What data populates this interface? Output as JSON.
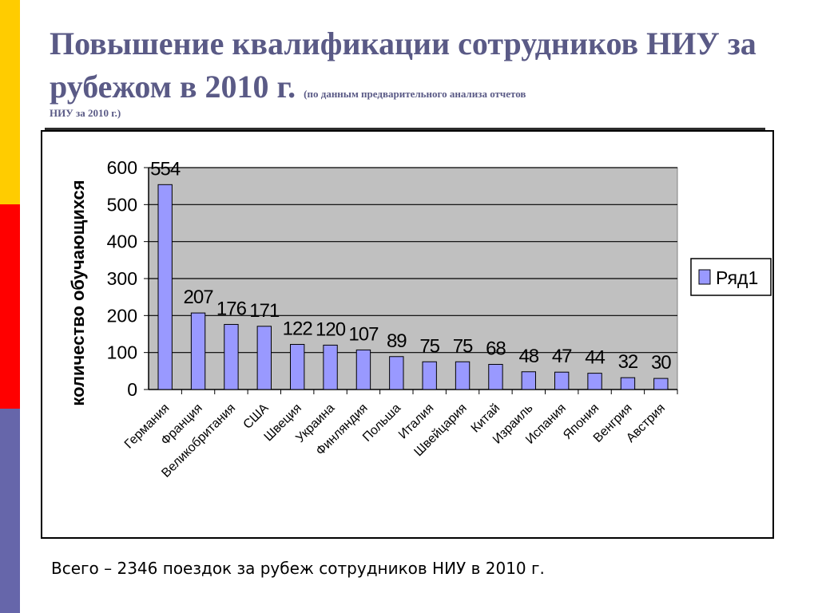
{
  "slide": {
    "title": "Повышение квалификации сотрудников НИУ за рубежом в 2010 г.",
    "subtitle_part1": "(по данным предварительного анализа отчетов",
    "subtitle_part2": "НИУ за 2010 г.)",
    "footer": "Всего – 2346 поездок за рубеж сотрудников НИУ в 2010 г.",
    "side_colors": [
      "#ffcc00",
      "#ff0000",
      "#6666aa"
    ]
  },
  "chart_data": {
    "type": "bar",
    "categories": [
      "Германия",
      "Франция",
      "Великобритания",
      "США",
      "Швеция",
      "Украина",
      "Финляндия",
      "Польша",
      "Италия",
      "Швейцария",
      "Китай",
      "Израиль",
      "Испания",
      "Япония",
      "Венгрия",
      "Австрия"
    ],
    "series": [
      {
        "name": "Ряд1",
        "values": [
          554,
          207,
          176,
          171,
          122,
          120,
          107,
          89,
          75,
          75,
          68,
          48,
          47,
          44,
          32,
          30
        ],
        "color": "#9999ff"
      }
    ],
    "ylabel": "количество обучающихся",
    "ylim": [
      0,
      600
    ],
    "yticks": [
      0,
      100,
      200,
      300,
      400,
      500,
      600
    ],
    "plot_background": "#c0c0c0",
    "grid": true,
    "legend": "right"
  }
}
